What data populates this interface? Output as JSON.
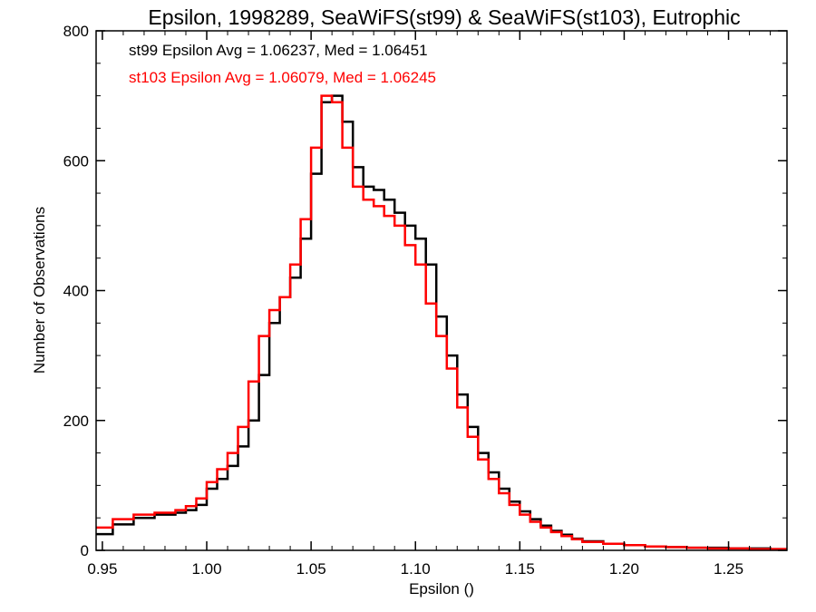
{
  "chart_data": {
    "type": "line",
    "title": "Epsilon, 1998289, SeaWiFS(st99) & SeaWiFS(st103), Eutrophic",
    "xlabel": "Epsilon ()",
    "ylabel": "Number of Observations",
    "xlim": [
      0.947,
      1.278
    ],
    "ylim": [
      0,
      800
    ],
    "x_ticks": [
      "0.95",
      "1.00",
      "1.05",
      "1.10",
      "1.15",
      "1.20",
      "1.25"
    ],
    "y_ticks": [
      "0",
      "200",
      "400",
      "600",
      "800"
    ],
    "grid": false,
    "annotations": [
      {
        "text": "st99 Epsilon Avg = 1.06237, Med = 1.06451",
        "color": "#000000"
      },
      {
        "text": "st103 Epsilon Avg = 1.06079, Med = 1.06245",
        "color": "#ff0000"
      }
    ],
    "series": [
      {
        "color": "#000000",
        "x": [
          0.947,
          0.955,
          0.965,
          0.975,
          0.985,
          0.99,
          0.995,
          1.0,
          1.005,
          1.01,
          1.015,
          1.02,
          1.025,
          1.03,
          1.035,
          1.04,
          1.045,
          1.05,
          1.055,
          1.06,
          1.065,
          1.07,
          1.075,
          1.08,
          1.085,
          1.09,
          1.095,
          1.1,
          1.105,
          1.11,
          1.115,
          1.12,
          1.125,
          1.13,
          1.135,
          1.14,
          1.145,
          1.15,
          1.155,
          1.16,
          1.165,
          1.17,
          1.175,
          1.18,
          1.19,
          1.2,
          1.21,
          1.22,
          1.23,
          1.24,
          1.25,
          1.26,
          1.27,
          1.278
        ],
        "y": [
          25,
          40,
          50,
          55,
          58,
          62,
          70,
          95,
          110,
          130,
          160,
          200,
          270,
          350,
          390,
          420,
          480,
          580,
          690,
          700,
          660,
          590,
          560,
          555,
          540,
          520,
          500,
          480,
          440,
          360,
          300,
          240,
          190,
          150,
          120,
          95,
          75,
          60,
          48,
          38,
          30,
          24,
          18,
          14,
          10,
          8,
          6,
          5,
          4,
          4,
          3,
          3,
          2,
          2
        ]
      },
      {
        "color": "#ff0000",
        "x": [
          0.947,
          0.955,
          0.965,
          0.975,
          0.985,
          0.99,
          0.995,
          1.0,
          1.005,
          1.01,
          1.015,
          1.02,
          1.025,
          1.03,
          1.035,
          1.04,
          1.045,
          1.05,
          1.055,
          1.06,
          1.065,
          1.07,
          1.075,
          1.08,
          1.085,
          1.09,
          1.095,
          1.1,
          1.105,
          1.11,
          1.115,
          1.12,
          1.125,
          1.13,
          1.135,
          1.14,
          1.145,
          1.15,
          1.155,
          1.16,
          1.165,
          1.17,
          1.175,
          1.18,
          1.19,
          1.2,
          1.21,
          1.22,
          1.23,
          1.24,
          1.25,
          1.26,
          1.27,
          1.278
        ],
        "y": [
          35,
          48,
          55,
          58,
          62,
          68,
          80,
          105,
          125,
          150,
          190,
          260,
          330,
          370,
          390,
          440,
          510,
          620,
          700,
          690,
          620,
          560,
          540,
          530,
          515,
          500,
          470,
          440,
          380,
          330,
          280,
          220,
          175,
          140,
          110,
          88,
          70,
          55,
          44,
          35,
          28,
          22,
          17,
          13,
          10,
          8,
          6,
          5,
          4,
          3,
          3,
          2,
          2,
          2
        ]
      }
    ]
  }
}
